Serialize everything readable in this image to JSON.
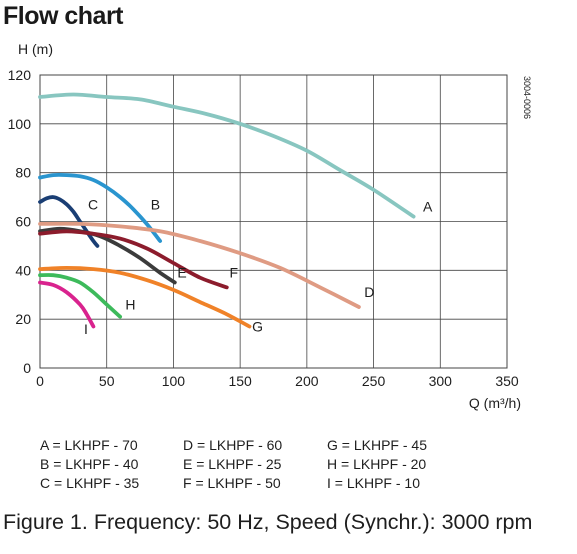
{
  "title": "Flow chart",
  "caption": "Figure 1. Frequency: 50 Hz, Speed (Synchr.): 3000 rpm",
  "chart_data": {
    "type": "line",
    "ylabel": "H (m)",
    "xlabel": "Q (m³/h)",
    "code": "3004-0006",
    "xlim": [
      0,
      350
    ],
    "ylim": [
      0,
      120
    ],
    "xticks": [
      0,
      50,
      100,
      150,
      200,
      250,
      300,
      350
    ],
    "yticks": [
      0,
      20,
      40,
      60,
      80,
      100,
      120
    ],
    "grid": true,
    "series": [
      {
        "name": "A",
        "color": "#88c6c0",
        "label_at": [
          287,
          64
        ],
        "points": [
          [
            0,
            111
          ],
          [
            25,
            112
          ],
          [
            50,
            111
          ],
          [
            75,
            110
          ],
          [
            100,
            107
          ],
          [
            125,
            104
          ],
          [
            150,
            100
          ],
          [
            175,
            95
          ],
          [
            200,
            89
          ],
          [
            225,
            81
          ],
          [
            250,
            73
          ],
          [
            280,
            62
          ]
        ]
      },
      {
        "name": "B",
        "color": "#2a95cf",
        "label_at": [
          83,
          65
        ],
        "points": [
          [
            0,
            78
          ],
          [
            10,
            79
          ],
          [
            20,
            79
          ],
          [
            30,
            78.5
          ],
          [
            40,
            77
          ],
          [
            50,
            74
          ],
          [
            60,
            70
          ],
          [
            70,
            65
          ],
          [
            80,
            59
          ],
          [
            90,
            52
          ]
        ]
      },
      {
        "name": "C",
        "color": "#1a3e74",
        "label_at": [
          36,
          65
        ],
        "points": [
          [
            0,
            68
          ],
          [
            5,
            69.5
          ],
          [
            10,
            70
          ],
          [
            15,
            69
          ],
          [
            20,
            67
          ],
          [
            25,
            64
          ],
          [
            30,
            60
          ],
          [
            35,
            56
          ],
          [
            40,
            52
          ],
          [
            43,
            50
          ]
        ]
      },
      {
        "name": "D",
        "color": "#df9b83",
        "label_at": [
          243,
          29
        ],
        "points": [
          [
            0,
            59
          ],
          [
            30,
            59
          ],
          [
            60,
            58
          ],
          [
            90,
            56
          ],
          [
            120,
            52
          ],
          [
            150,
            47
          ],
          [
            180,
            41
          ],
          [
            210,
            33
          ],
          [
            239,
            25
          ]
        ]
      },
      {
        "name": "E",
        "color": "#3b3b3b",
        "label_at": [
          103,
          37
        ],
        "points": [
          [
            0,
            56
          ],
          [
            15,
            57
          ],
          [
            30,
            56
          ],
          [
            45,
            54
          ],
          [
            60,
            50
          ],
          [
            75,
            45
          ],
          [
            90,
            39
          ],
          [
            101,
            35
          ]
        ]
      },
      {
        "name": "F",
        "color": "#8c1c2c",
        "label_at": [
          142,
          37
        ],
        "points": [
          [
            0,
            55
          ],
          [
            20,
            56
          ],
          [
            40,
            55
          ],
          [
            60,
            53
          ],
          [
            80,
            49
          ],
          [
            100,
            43
          ],
          [
            120,
            37
          ],
          [
            140,
            33
          ]
        ]
      },
      {
        "name": "G",
        "color": "#f08228",
        "label_at": [
          159,
          15
        ],
        "points": [
          [
            0,
            40.5
          ],
          [
            20,
            41
          ],
          [
            40,
            40.5
          ],
          [
            60,
            39
          ],
          [
            80,
            36
          ],
          [
            100,
            32
          ],
          [
            120,
            27
          ],
          [
            140,
            22
          ],
          [
            157,
            17
          ]
        ]
      },
      {
        "name": "H",
        "color": "#3dba5b",
        "label_at": [
          64,
          24
        ],
        "points": [
          [
            0,
            38
          ],
          [
            10,
            38
          ],
          [
            20,
            37
          ],
          [
            30,
            35
          ],
          [
            40,
            31
          ],
          [
            50,
            26
          ],
          [
            60,
            21
          ]
        ]
      },
      {
        "name": "I",
        "color": "#d9238e",
        "label_at": [
          33,
          14
        ],
        "points": [
          [
            0,
            35
          ],
          [
            10,
            34
          ],
          [
            20,
            31
          ],
          [
            30,
            26
          ],
          [
            35,
            22
          ],
          [
            40,
            17
          ]
        ]
      }
    ],
    "legend": [
      [
        "A = LKHPF - 70",
        "B = LKHPF - 40",
        "C = LKHPF - 35"
      ],
      [
        "D = LKHPF - 60",
        "E = LKHPF - 25",
        "F = LKHPF - 50"
      ],
      [
        "G = LKHPF - 45",
        "H = LKHPF - 20",
        "I = LKHPF - 10"
      ]
    ]
  }
}
